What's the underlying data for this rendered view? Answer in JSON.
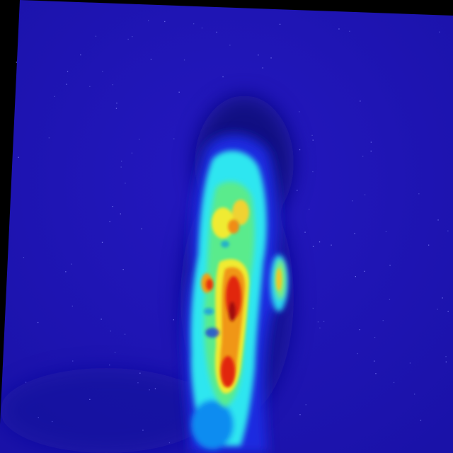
{
  "image": {
    "kind": "thermal-heatmap",
    "subject": "human-head-profile",
    "colormap": "jet",
    "colors": {
      "border": "#000000",
      "background_blue": "#1c14b4",
      "cold": "#1e0fd2",
      "cool": "#0a8cf0",
      "cyan": "#2ee6f0",
      "green": "#5aeb8c",
      "yellow": "#f0eb32",
      "orange": "#f09614",
      "red": "#e1280a",
      "dark_red": "#a00a0a"
    }
  }
}
